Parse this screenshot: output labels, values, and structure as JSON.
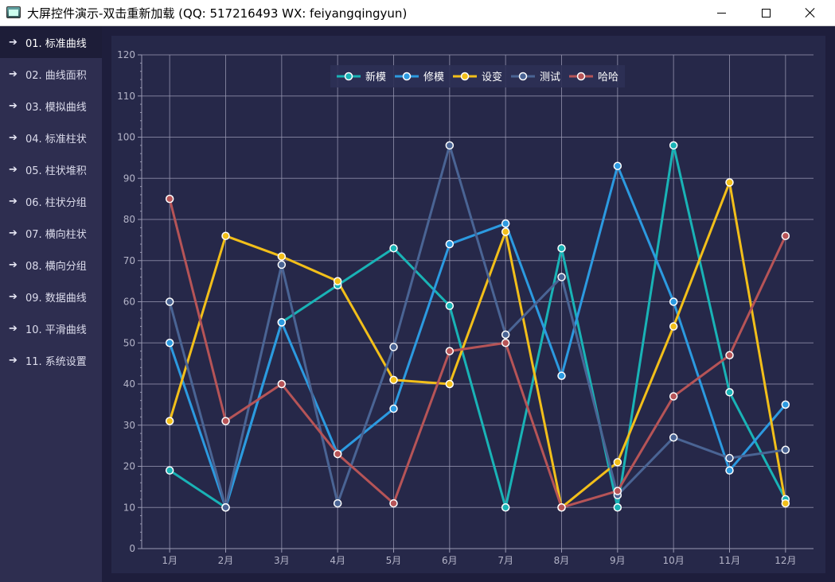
{
  "window": {
    "title": "大屏控件演示-双击重新加载 (QQ: 517216493  WX: feiyangqingyun)"
  },
  "sidebar": {
    "items": [
      {
        "label": "01. 标准曲线",
        "active": true
      },
      {
        "label": "02. 曲线面积"
      },
      {
        "label": "03. 模拟曲线"
      },
      {
        "label": "04. 标准柱状"
      },
      {
        "label": "05. 柱状堆积"
      },
      {
        "label": "06. 柱状分组"
      },
      {
        "label": "07. 横向柱状"
      },
      {
        "label": "08. 横向分组"
      },
      {
        "label": "09. 数据曲线"
      },
      {
        "label": "10. 平滑曲线"
      },
      {
        "label": "11. 系统设置"
      }
    ]
  },
  "colors": {
    "background": "#1e1e3c",
    "panel": "#262849",
    "grid": "#9a9ab4",
    "axis_text": "#b4b4c8",
    "legend_bg": "#2e3055"
  },
  "chart_data": {
    "type": "line",
    "categories": [
      "1月",
      "2月",
      "3月",
      "4月",
      "5月",
      "6月",
      "7月",
      "8月",
      "9月",
      "10月",
      "11月",
      "12月"
    ],
    "ylim": [
      0,
      120
    ],
    "yticks": [
      0,
      10,
      20,
      30,
      40,
      50,
      60,
      70,
      80,
      90,
      100,
      110,
      120
    ],
    "grid": true,
    "legend_position": "top-center",
    "series": [
      {
        "name": "新模",
        "color": "#19b3b6",
        "values": [
          19,
          10,
          55,
          64,
          73,
          59,
          10,
          73,
          10,
          98,
          38,
          12
        ]
      },
      {
        "name": "修模",
        "color": "#2c9ae0",
        "values": [
          50,
          10,
          55,
          23,
          34,
          74,
          79,
          42,
          93,
          60,
          19,
          35
        ]
      },
      {
        "name": "设变",
        "color": "#f2bf1a",
        "values": [
          31,
          76,
          71,
          65,
          41,
          40,
          77,
          10,
          21,
          54,
          89,
          11
        ]
      },
      {
        "name": "测试",
        "color": "#4a6494",
        "values": [
          60,
          10,
          69,
          11,
          49,
          98,
          52,
          66,
          13,
          27,
          22,
          24
        ]
      },
      {
        "name": "哈哈",
        "color": "#b65457",
        "values": [
          85,
          31,
          40,
          23,
          11,
          48,
          50,
          10,
          14,
          37,
          47,
          76
        ]
      }
    ]
  }
}
